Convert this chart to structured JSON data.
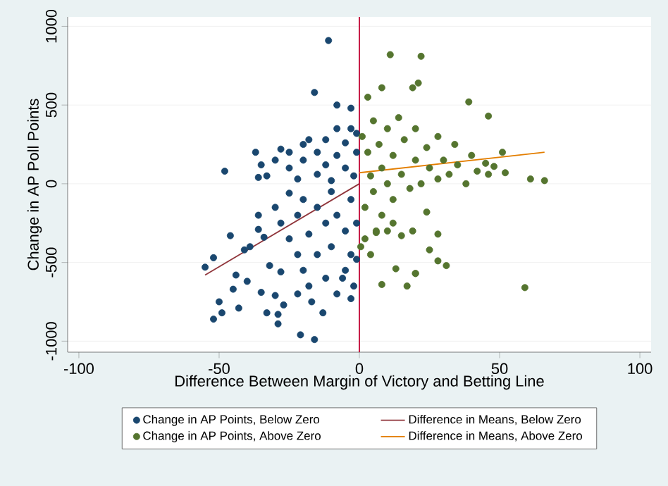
{
  "chart_data": {
    "type": "scatter",
    "xlabel": "Difference Between Margin of Victory and Betting Line",
    "ylabel": "Change in AP Poll Points",
    "xlim": [
      -104,
      104
    ],
    "ylim": [
      -1070,
      1060
    ],
    "xticks": [
      -100,
      -50,
      0,
      50,
      100
    ],
    "yticks": [
      -1000,
      -500,
      0,
      500,
      1000
    ],
    "grid": "y",
    "legend": "bottom",
    "ref_lines": [
      {
        "axis": "x",
        "value": 0,
        "color": "#c10534"
      }
    ],
    "series": [
      {
        "name": "Change in AP Points, Below Zero",
        "marker": "circle",
        "color": "#1a476f",
        "x": [
          -11,
          -16,
          -8,
          -3,
          -48,
          -37,
          -55,
          -46,
          -52,
          -50,
          -52,
          -49,
          -43,
          -45,
          -44,
          -21,
          -16,
          -13,
          -29,
          -29,
          -27,
          -33,
          -36,
          -36,
          -35,
          -36,
          -3,
          -30,
          -35,
          -40,
          -39,
          -41,
          -34,
          -33,
          -30,
          -28,
          -25,
          -25,
          -22,
          -20,
          -20,
          -18,
          -15,
          -15,
          -12,
          -12,
          -10,
          -8,
          -8,
          -5,
          -5,
          -3,
          -2,
          -1,
          -1,
          -30,
          -28,
          -25,
          -25,
          -22,
          -22,
          -20,
          -20,
          -18,
          -18,
          -15,
          -15,
          -12,
          -12,
          -10,
          -10,
          -8,
          -8,
          -5,
          -5,
          -3,
          -3,
          -1,
          -1,
          -32,
          -28,
          -22,
          -17,
          -6,
          -2
        ],
        "values": [
          910,
          580,
          500,
          480,
          80,
          200,
          -530,
          -330,
          -470,
          -750,
          -860,
          -820,
          -790,
          -670,
          -580,
          -960,
          -990,
          -820,
          -890,
          -830,
          -770,
          -820,
          -200,
          -290,
          120,
          40,
          -730,
          -710,
          -690,
          -620,
          -400,
          -420,
          -340,
          50,
          150,
          220,
          100,
          200,
          30,
          150,
          250,
          280,
          60,
          200,
          120,
          280,
          20,
          180,
          350,
          100,
          260,
          350,
          50,
          200,
          320,
          -150,
          -250,
          -60,
          -350,
          -200,
          -450,
          -100,
          -550,
          -320,
          -650,
          -150,
          -450,
          -250,
          -600,
          -50,
          -400,
          -700,
          -200,
          -300,
          -550,
          -100,
          -450,
          -250,
          -480,
          -520,
          -560,
          -700,
          -750,
          -600,
          -650
        ]
      },
      {
        "name": "Difference in Means, Below Zero",
        "type": "line",
        "color": "#90353b",
        "x": [
          -55,
          0
        ],
        "values": [
          -580,
          0
        ]
      },
      {
        "name": "Change in AP Points, Above Zero",
        "marker": "circle",
        "color": "#55752f",
        "x": [
          11,
          22,
          39,
          46,
          61,
          66,
          51,
          52,
          20,
          28,
          31,
          59,
          8,
          17,
          20,
          24,
          28,
          13,
          6,
          0.5,
          8,
          19,
          21,
          3,
          1,
          2,
          3,
          4,
          5,
          5,
          7,
          8,
          8,
          10,
          10,
          12,
          12,
          14,
          15,
          16,
          18,
          20,
          20,
          22,
          24,
          25,
          28,
          28,
          30,
          32,
          34,
          35,
          38,
          40,
          42,
          45,
          46,
          48,
          2,
          4,
          6,
          10,
          12,
          15,
          19,
          25
        ],
        "values": [
          820,
          810,
          520,
          430,
          30,
          20,
          200,
          70,
          -570,
          -490,
          -520,
          -660,
          -640,
          -650,
          -570,
          -180,
          -320,
          -540,
          -310,
          -400,
          610,
          610,
          640,
          550,
          300,
          -150,
          200,
          50,
          400,
          -50,
          250,
          -200,
          100,
          350,
          0,
          180,
          -100,
          420,
          60,
          280,
          -30,
          150,
          350,
          0,
          230,
          100,
          300,
          30,
          150,
          60,
          250,
          120,
          0,
          180,
          80,
          130,
          60,
          110,
          -350,
          -450,
          -300,
          -300,
          -250,
          -330,
          -300,
          -420
        ]
      },
      {
        "name": "Difference in Means, Above Zero",
        "type": "line",
        "color": "#e37e00",
        "x": [
          0,
          66
        ],
        "values": [
          70,
          200
        ]
      }
    ]
  }
}
